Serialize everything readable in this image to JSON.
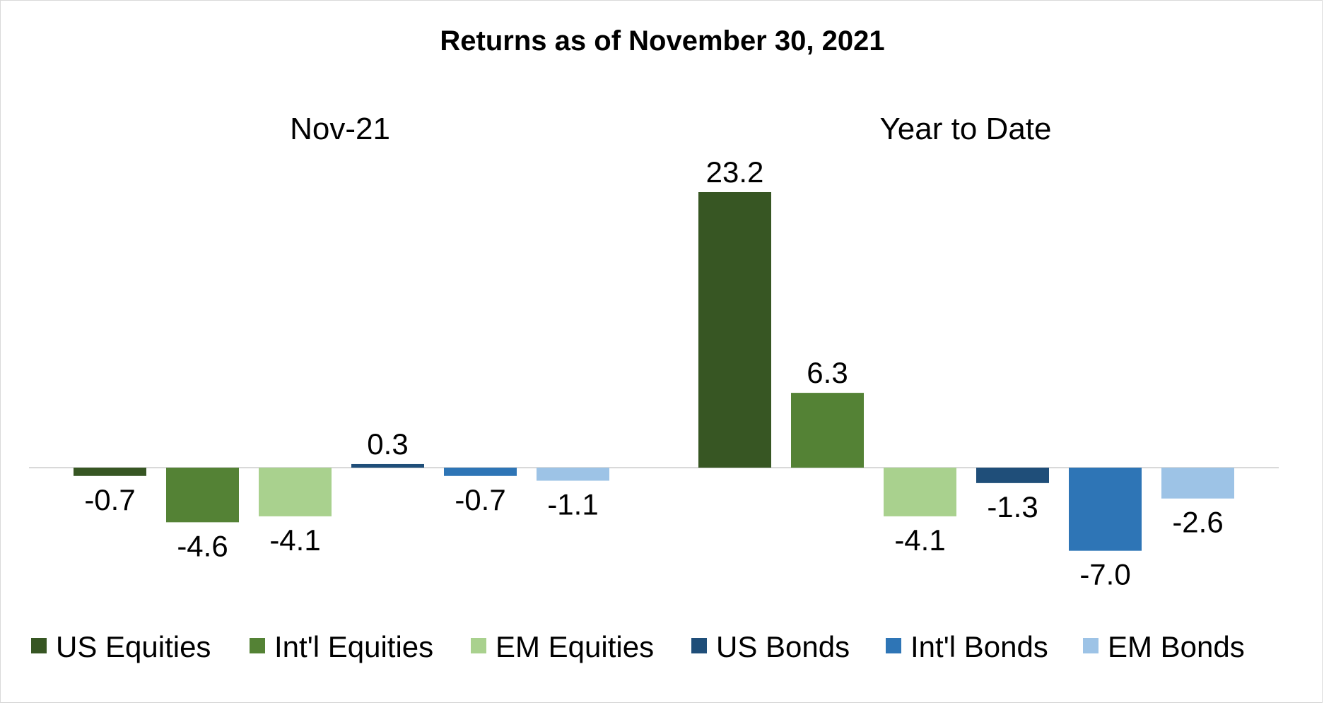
{
  "chart_data": {
    "type": "bar",
    "title": "Returns as of November 30, 2021",
    "categories": [
      "Nov-21",
      "Year to Date"
    ],
    "series": [
      {
        "name": "US Equities",
        "color": "#375623",
        "values": [
          -0.7,
          23.2
        ]
      },
      {
        "name": "Int'l Equities",
        "color": "#548235",
        "values": [
          -4.6,
          6.3
        ]
      },
      {
        "name": "EM Equities",
        "color": "#a9d18e",
        "values": [
          -4.1,
          -4.1
        ]
      },
      {
        "name": "US Bonds",
        "color": "#1f4e79",
        "values": [
          0.3,
          -1.3
        ]
      },
      {
        "name": "Int'l Bonds",
        "color": "#2e75b6",
        "values": [
          -0.7,
          -7.0
        ]
      },
      {
        "name": "EM Bonds",
        "color": "#9dc3e6",
        "values": [
          -1.1,
          -2.6
        ]
      }
    ],
    "data_labels": [
      [
        "-0.7",
        "23.2"
      ],
      [
        "-4.6",
        "6.3"
      ],
      [
        "-4.1",
        "-4.1"
      ],
      [
        "0.3",
        "-1.3"
      ],
      [
        "-0.7",
        "-7.0"
      ],
      [
        "-1.1",
        "-2.6"
      ]
    ],
    "ylim": [
      -8,
      25
    ],
    "grid": false,
    "legend_position": "bottom",
    "xlabel": "",
    "ylabel": ""
  }
}
